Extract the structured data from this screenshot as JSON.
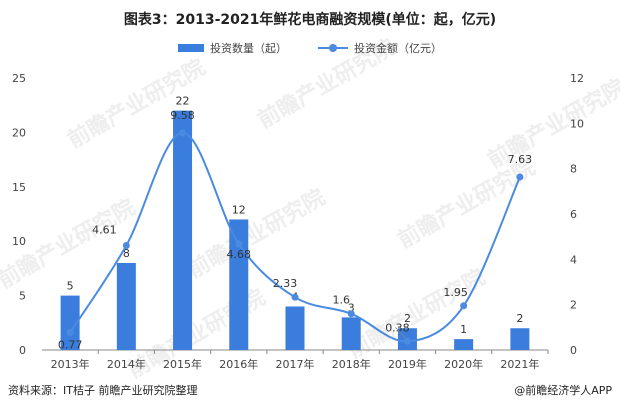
{
  "header": {
    "title": "图表3：2013-2021年鲜花电商融资规模(单位：起，亿元)"
  },
  "legend": {
    "bar_label": "投资数量（起）",
    "line_label": "投资金额（亿元）"
  },
  "footer": {
    "source": "资料来源：IT桔子 前瞻产业研究院整理",
    "brand": "@前瞻经济学人APP"
  },
  "watermark": {
    "text": "前瞻产业研究院"
  },
  "chart_data": {
    "type": "bar+line",
    "categories": [
      "2013年",
      "2014年",
      "2015年",
      "2016年",
      "2017年",
      "2018年",
      "2019年",
      "2020年",
      "2021年"
    ],
    "series": [
      {
        "name": "投资数量（起）",
        "type": "bar",
        "axis": "left",
        "values": [
          5,
          8,
          22,
          12,
          4,
          3,
          2,
          1,
          2
        ],
        "labels": [
          "5",
          "8",
          "22",
          "12",
          "4",
          "3",
          "2",
          "1",
          "2"
        ]
      },
      {
        "name": "投资金额（亿元）",
        "type": "line",
        "axis": "right",
        "values": [
          0.77,
          4.61,
          9.58,
          4.68,
          2.33,
          1.6,
          0.38,
          1.95,
          7.63
        ],
        "labels": [
          "0.77",
          "4.61",
          "9.58",
          "4.68",
          "2.33",
          "1.6",
          "0.38",
          "1.95",
          "7.63"
        ]
      }
    ],
    "y_left": {
      "min": 0,
      "max": 25,
      "ticks": [
        "0",
        "5",
        "10",
        "15",
        "20",
        "25"
      ]
    },
    "y_right": {
      "min": 0,
      "max": 12,
      "ticks": [
        "0",
        "2",
        "4",
        "6",
        "8",
        "10",
        "12"
      ]
    },
    "grid": false,
    "legend_position": "top",
    "colors": {
      "bar": "#3a7ddd",
      "line": "#4a8be0",
      "watermark": "#eeeeee"
    }
  }
}
